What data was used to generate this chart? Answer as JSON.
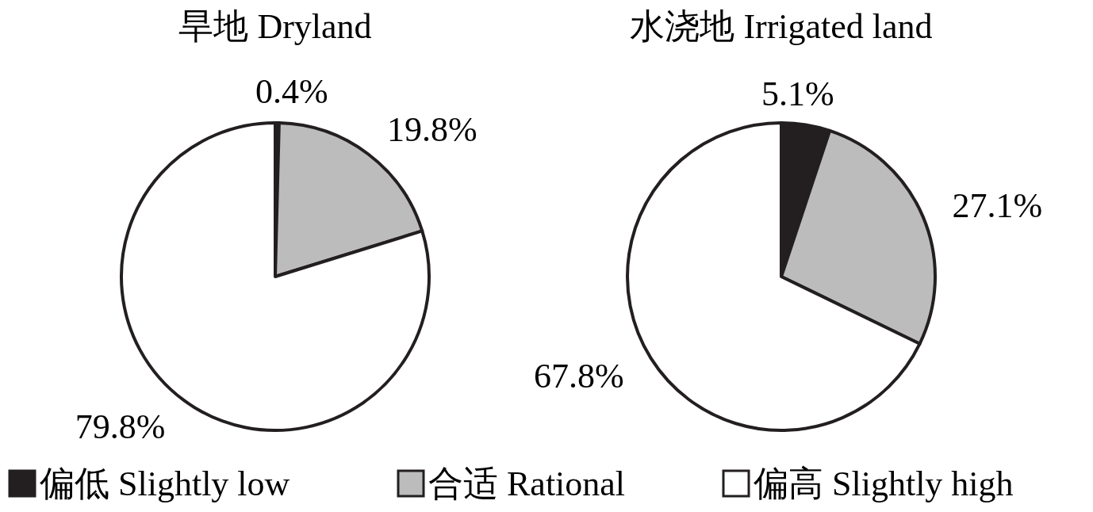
{
  "chart_data": [
    {
      "type": "pie",
      "title": "旱地 Dryland",
      "categories": [
        "偏低 Slightly low",
        "合适 Rational",
        "偏高 Slightly high"
      ],
      "values": [
        0.4,
        19.8,
        79.8
      ],
      "colors": [
        "#231f20",
        "#bcbcbc",
        "#ffffff"
      ],
      "value_labels": [
        "0.4%",
        "19.8%",
        "79.8%"
      ],
      "legend": "bottom"
    },
    {
      "type": "pie",
      "title": "水浇地 Irrigated land",
      "categories": [
        null,
        null,
        null
      ],
      "values": [
        5.1,
        27.1,
        67.8
      ],
      "colors": [
        "#231f20",
        "#bcbcbc",
        "#ffffff"
      ],
      "value_labels": [
        "5.1%",
        "27.1%",
        "67.8%"
      ]
    }
  ]
}
